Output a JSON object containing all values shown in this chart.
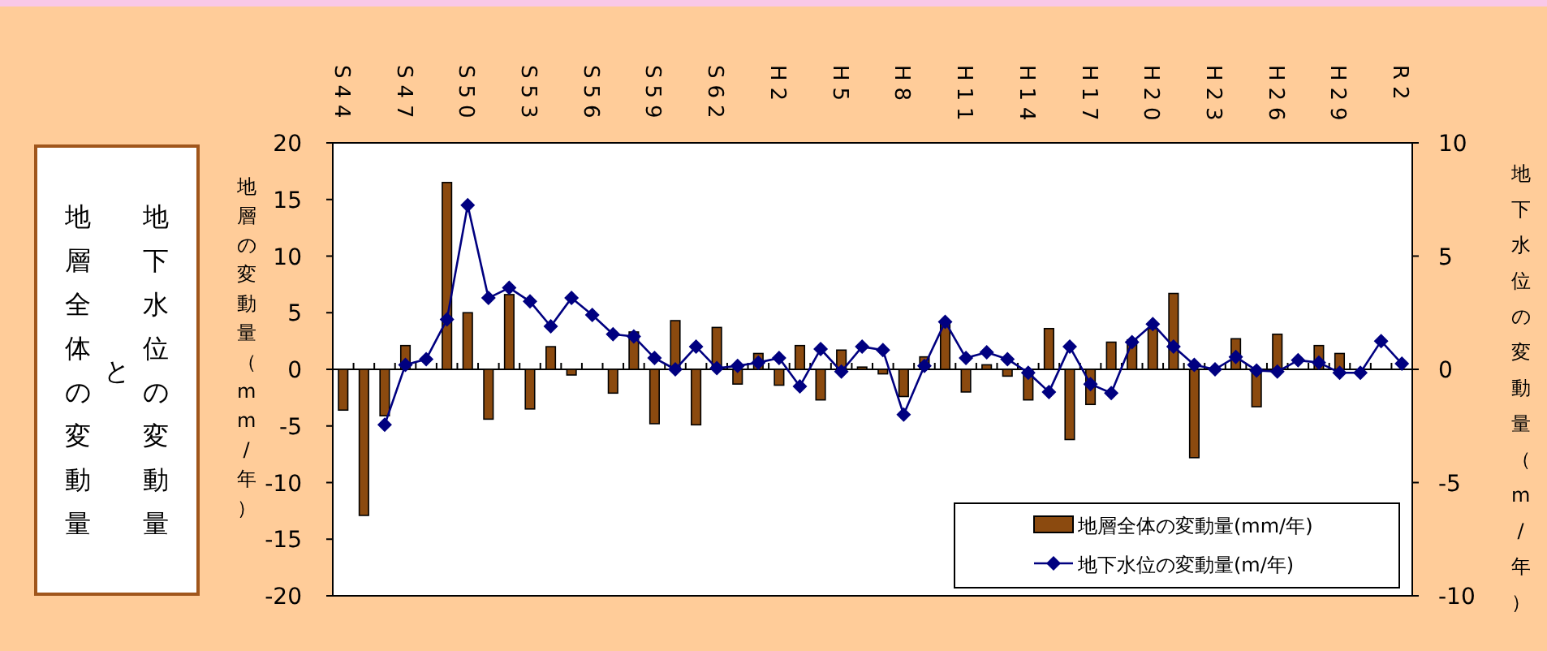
{
  "chart_data": {
    "type": "bar",
    "title": "地下水位の変動量と地層全体の変動量",
    "categories": [
      "S44",
      null,
      null,
      "S47",
      null,
      null,
      "S50",
      null,
      null,
      "S53",
      null,
      null,
      "S56",
      null,
      null,
      "S59",
      null,
      null,
      "S62",
      null,
      null,
      "H2",
      null,
      null,
      "H5",
      null,
      null,
      "H8",
      null,
      null,
      "H11",
      null,
      null,
      "H14",
      null,
      null,
      "H17",
      null,
      null,
      "H20",
      null,
      null,
      "H23",
      null,
      null,
      "H26",
      null,
      null,
      "H29",
      null,
      null,
      "R2"
    ],
    "series": [
      {
        "name": "地層全体の変動量(mm/年)",
        "type": "bar",
        "color": "#8b4a0f",
        "values": [
          -3.6,
          -12.9,
          -4.1,
          2.1,
          0,
          16.5,
          5.0,
          -4.4,
          6.6,
          -3.5,
          2.0,
          -0.5,
          0,
          -2.1,
          3.3,
          -4.8,
          4.3,
          -4.9,
          3.7,
          -1.3,
          1.4,
          -1.4,
          2.1,
          -2.7,
          1.7,
          0.2,
          -0.4,
          -2.4,
          1.1,
          4.0,
          -2.0,
          0.4,
          -0.6,
          -2.7,
          3.6,
          -6.2,
          -3.1,
          2.4,
          2.6,
          3.6,
          6.7,
          -7.8,
          0,
          2.7,
          -3.3,
          3.1,
          0,
          2.1,
          1.4,
          0,
          0,
          0
        ]
      },
      {
        "name": "地下水位の変動量(m/年)",
        "type": "line",
        "axis": "y2",
        "color": "#000080",
        "values": [
          null,
          null,
          -2.45,
          0.2,
          0.45,
          2.2,
          7.25,
          3.15,
          3.6,
          3.0,
          1.9,
          3.15,
          2.4,
          1.55,
          1.45,
          0.5,
          0,
          1.0,
          0.05,
          0.15,
          0.3,
          0.5,
          -0.75,
          0.9,
          -0.1,
          1.0,
          0.85,
          -2.0,
          0.15,
          2.1,
          0.5,
          0.75,
          0.45,
          -0.15,
          -1.0,
          1.0,
          -0.65,
          -1.05,
          1.2,
          2.0,
          1.0,
          0.2,
          0,
          0.55,
          -0.05,
          -0.1,
          0.4,
          0.3,
          -0.15,
          -0.15,
          1.25,
          0.25
        ]
      }
    ],
    "ylabel": "地層の変動量（mm/年）",
    "y2label": "地下水位の変動量（m/年）",
    "ylim": [
      -20,
      20
    ],
    "yticks": [
      -20,
      -15,
      -10,
      -5,
      0,
      5,
      10,
      15,
      20
    ],
    "y2lim": [
      -10,
      10
    ],
    "y2ticks": [
      -10,
      -5,
      0,
      5,
      10
    ],
    "legend": "bottom right",
    "marker": "diamond"
  }
}
